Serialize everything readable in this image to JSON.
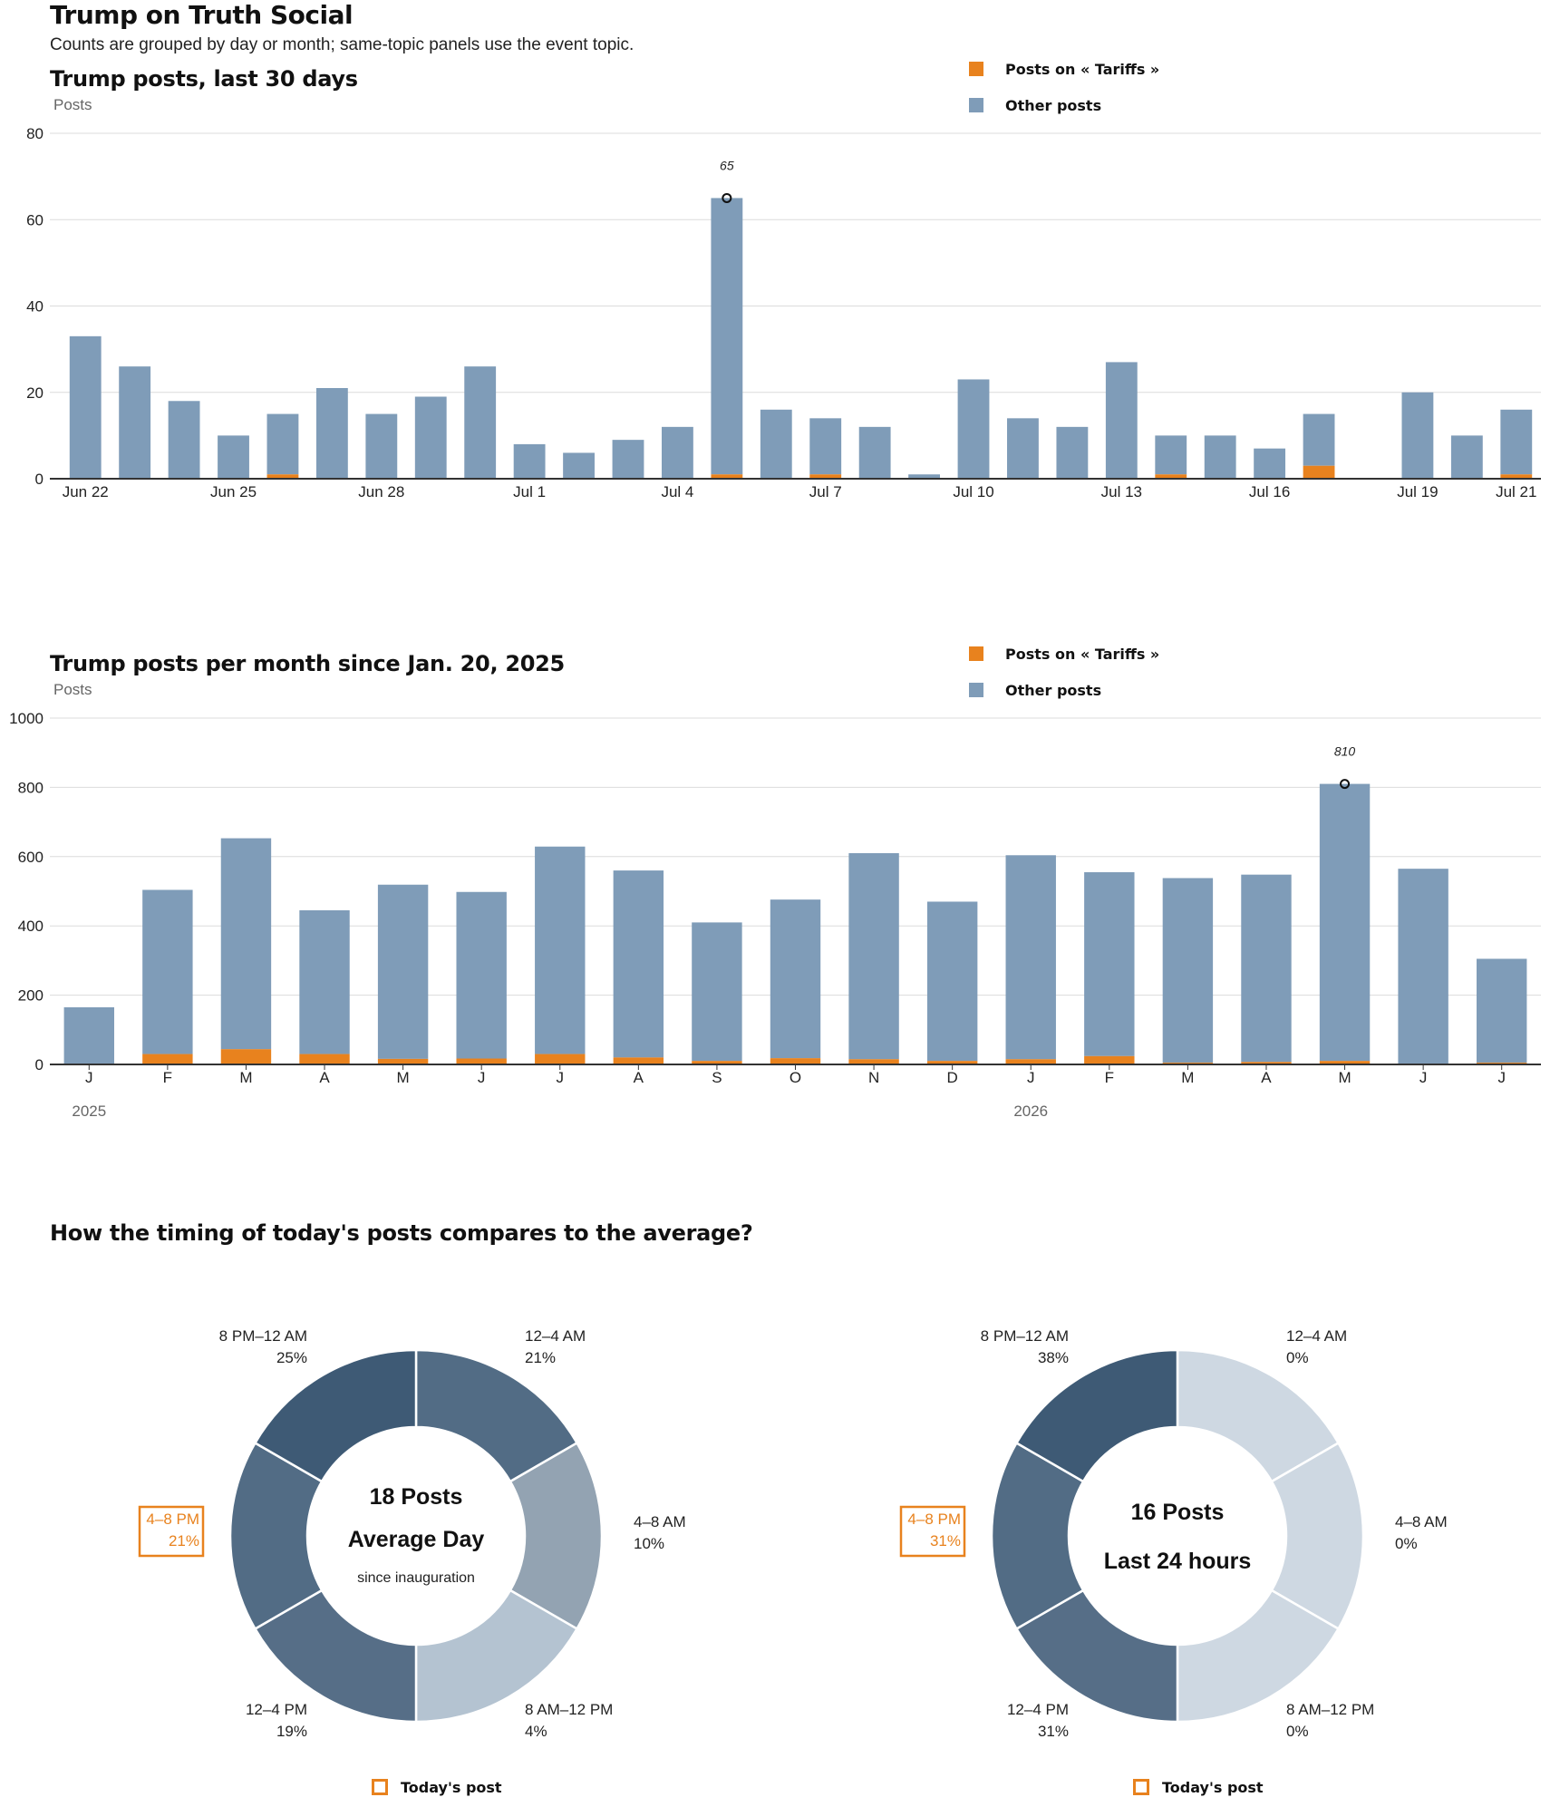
{
  "page": {
    "title": "Trump on Truth Social",
    "subtitle": "Counts are grouped by day or month; same-topic panels use the event topic."
  },
  "legend": {
    "topic_label": "Posts on « Tariffs »",
    "other_label": "Other posts",
    "topic_color": "#e8821e",
    "other_color": "#7f9cb8"
  },
  "chart_data": [
    {
      "type": "bar",
      "stacked": true,
      "title": "Trump posts, last 30 days",
      "ylabel": "Posts",
      "ylim": [
        0,
        80
      ],
      "yticks": [
        0,
        20,
        40,
        60,
        80
      ],
      "x": [
        "Jun 22",
        "Jun 23",
        "Jun 24",
        "Jun 25",
        "Jun 26",
        "Jun 27",
        "Jun 28",
        "Jun 29",
        "Jun 30",
        "Jul 1",
        "Jul 2",
        "Jul 3",
        "Jul 4",
        "Jul 5",
        "Jul 6",
        "Jul 7",
        "Jul 8",
        "Jul 9",
        "Jul 10",
        "Jul 11",
        "Jul 12",
        "Jul 13",
        "Jul 14",
        "Jul 15",
        "Jul 16",
        "Jul 17",
        "Jul 18",
        "Jul 19",
        "Jul 20",
        "Jul 21"
      ],
      "tick_labels": [
        {
          "index": 0,
          "label": "Jun 22"
        },
        {
          "index": 3,
          "label": "Jun 25"
        },
        {
          "index": 6,
          "label": "Jun 28"
        },
        {
          "index": 9,
          "label": "Jul 1"
        },
        {
          "index": 12,
          "label": "Jul 4"
        },
        {
          "index": 15,
          "label": "Jul 7"
        },
        {
          "index": 18,
          "label": "Jul 10"
        },
        {
          "index": 21,
          "label": "Jul 13"
        },
        {
          "index": 24,
          "label": "Jul 16"
        },
        {
          "index": 27,
          "label": "Jul 19"
        },
        {
          "index": 29,
          "label": "Jul 21"
        }
      ],
      "series": [
        {
          "name": "Posts on « Tariffs »",
          "color": "#e8821e",
          "values": [
            0,
            0,
            0,
            0,
            1,
            0,
            0,
            0,
            0,
            0,
            0,
            0,
            0,
            1,
            0,
            1,
            0,
            0,
            0,
            0,
            0,
            0,
            1,
            0,
            0,
            3,
            0,
            0,
            0,
            1
          ]
        },
        {
          "name": "Other posts",
          "color": "#7f9cb8",
          "values": [
            33,
            26,
            18,
            10,
            14,
            21,
            15,
            19,
            26,
            8,
            6,
            9,
            12,
            64,
            16,
            13,
            12,
            1,
            23,
            14,
            12,
            27,
            9,
            10,
            7,
            12,
            0,
            20,
            10,
            15
          ]
        }
      ],
      "annotation": {
        "index": 13,
        "value": 65,
        "label": "65"
      },
      "grid": true,
      "legend_position": "top-right"
    },
    {
      "type": "bar",
      "stacked": true,
      "title": "Trump posts per month since Jan. 20, 2025",
      "ylabel": "Posts",
      "ylim": [
        0,
        1000
      ],
      "yticks": [
        0,
        200,
        400,
        600,
        800,
        1000
      ],
      "categories": [
        "J",
        "F",
        "M",
        "A",
        "M",
        "J",
        "J",
        "A",
        "S",
        "O",
        "N",
        "D",
        "J",
        "F",
        "M",
        "A",
        "M",
        "J",
        "J"
      ],
      "year_labels": [
        {
          "index": 0,
          "label": "2025"
        },
        {
          "index": 12,
          "label": "2026"
        }
      ],
      "series": [
        {
          "name": "Posts on « Tariffs »",
          "color": "#e8821e",
          "values": [
            2,
            30,
            44,
            30,
            16,
            17,
            30,
            20,
            10,
            18,
            15,
            10,
            15,
            24,
            5,
            7,
            10,
            2,
            5
          ]
        },
        {
          "name": "Other posts",
          "color": "#7f9cb8",
          "values": [
            163,
            474,
            609,
            415,
            503,
            481,
            599,
            540,
            400,
            458,
            595,
            460,
            589,
            531,
            533,
            541,
            800,
            563,
            300
          ]
        }
      ],
      "annotation": {
        "index": 16,
        "value": 810,
        "label": "810"
      },
      "grid": true,
      "legend_position": "top-right"
    },
    {
      "type": "pie",
      "donut": true,
      "section_title": "How the timing of today's posts compares to the average?",
      "center": {
        "big": "18 Posts",
        "line2": "Average Day",
        "line3": "since inauguration"
      },
      "slices": [
        {
          "label": "12–4 AM",
          "pct": "21%",
          "value": 21,
          "color": "#526c85"
        },
        {
          "label": "4–8 AM",
          "pct": "10%",
          "value": 10,
          "color": "#93a3b2"
        },
        {
          "label": "8 AM–12 PM",
          "pct": "4%",
          "value": 4,
          "color": "#b4c3d1"
        },
        {
          "label": "12–4 PM",
          "pct": "19%",
          "value": 19,
          "color": "#566e87"
        },
        {
          "label": "4–8 PM",
          "pct": "21%",
          "value": 21,
          "color": "#526c85",
          "highlight": true
        },
        {
          "label": "8 PM–12 AM",
          "pct": "25%",
          "value": 25,
          "color": "#3e5a75"
        }
      ],
      "legend_label": "Today's post"
    },
    {
      "type": "pie",
      "donut": true,
      "center": {
        "big": "16 Posts",
        "line2": "Last 24 hours",
        "line3": ""
      },
      "slices": [
        {
          "label": "12–4 AM",
          "pct": "0%",
          "value": 0,
          "color": "#ced8e2"
        },
        {
          "label": "4–8 AM",
          "pct": "0%",
          "value": 0,
          "color": "#ced8e2"
        },
        {
          "label": "8 AM–12 PM",
          "pct": "0%",
          "value": 0,
          "color": "#ced8e2"
        },
        {
          "label": "12–4 PM",
          "pct": "31%",
          "value": 31,
          "color": "#566e87"
        },
        {
          "label": "4–8 PM",
          "pct": "31%",
          "value": 31,
          "color": "#526c85",
          "highlight": true
        },
        {
          "label": "8 PM–12 AM",
          "pct": "38%",
          "value": 38,
          "color": "#3e5a75"
        }
      ],
      "legend_label": "Today's post"
    }
  ]
}
